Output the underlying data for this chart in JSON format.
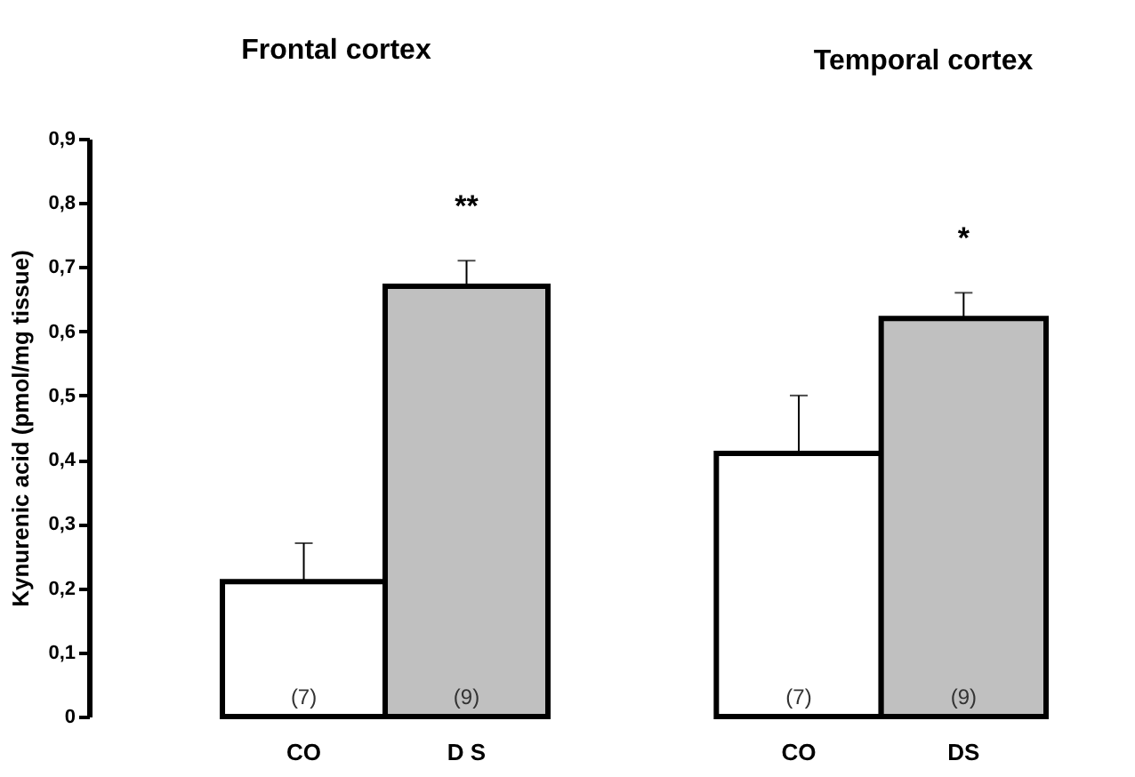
{
  "chart_data": [
    {
      "type": "bar",
      "title": "Frontal cortex",
      "ylabel": "Kynurenic acid (pmol/mg tissue)",
      "categories": [
        "CO",
        "D S"
      ],
      "values": [
        0.21,
        0.67
      ],
      "errors": [
        0.06,
        0.04
      ],
      "colors": [
        "#ffffff",
        "#c0c0c0"
      ],
      "ylim": [
        0,
        0.9
      ],
      "yticks": [
        0,
        {
          "value": 0.1,
          "label": "0,1"
        },
        {
          "value": 0.2,
          "label": "0,2"
        },
        {
          "value": 0.3,
          "label": "0,3"
        },
        {
          "value": 0.4,
          "label": "0,4"
        },
        {
          "value": 0.5,
          "label": "0,5"
        },
        {
          "value": 0.6,
          "label": "0,6"
        },
        {
          "value": 0.7,
          "label": "0,7"
        },
        {
          "value": 0.8,
          "label": "0,8"
        },
        {
          "value": 0.9,
          "label": "0,9"
        }
      ],
      "grid": false,
      "legend": false,
      "annotations": [
        "(7)",
        "(9)",
        "**"
      ]
    },
    {
      "type": "bar",
      "title": "Temporal cortex",
      "categories": [
        "CO",
        "DS"
      ],
      "values": [
        0.41,
        0.62
      ],
      "errors": [
        0.09,
        0.04
      ],
      "colors": [
        "#ffffff",
        "#c0c0c0"
      ],
      "ylim": [
        0,
        0.9
      ],
      "tick_labels": "x",
      "grid": false,
      "legend": false,
      "annotations": [
        "(7)",
        "(9)",
        "*"
      ]
    }
  ]
}
